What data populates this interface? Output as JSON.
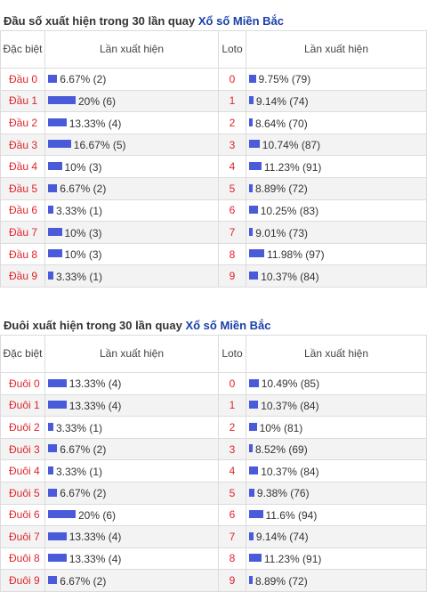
{
  "sections": [
    {
      "title_prefix": "Đầu số xuất hiện trong 30 lần quay",
      "title_link": "Xổ số Miền Bắc",
      "headers": {
        "col1": "Đặc biệt",
        "col2": "Lần xuất hiện",
        "col3": "Loto",
        "col4": "Lần xuất hiện"
      },
      "rows": [
        {
          "label": "Đầu 0",
          "special_pct": 6.67,
          "special_text": "6.67% (2)",
          "loto": "0",
          "loto_pct": 9.75,
          "loto_text": "9.75% (79)"
        },
        {
          "label": "Đầu 1",
          "special_pct": 20,
          "special_text": "20% (6)",
          "loto": "1",
          "loto_pct": 9.14,
          "loto_text": "9.14% (74)"
        },
        {
          "label": "Đầu 2",
          "special_pct": 13.33,
          "special_text": "13.33% (4)",
          "loto": "2",
          "loto_pct": 8.64,
          "loto_text": "8.64% (70)"
        },
        {
          "label": "Đầu 3",
          "special_pct": 16.67,
          "special_text": "16.67% (5)",
          "loto": "3",
          "loto_pct": 10.74,
          "loto_text": "10.74% (87)"
        },
        {
          "label": "Đầu 4",
          "special_pct": 10,
          "special_text": "10% (3)",
          "loto": "4",
          "loto_pct": 11.23,
          "loto_text": "11.23% (91)"
        },
        {
          "label": "Đầu 5",
          "special_pct": 6.67,
          "special_text": "6.67% (2)",
          "loto": "5",
          "loto_pct": 8.89,
          "loto_text": "8.89% (72)"
        },
        {
          "label": "Đầu 6",
          "special_pct": 3.33,
          "special_text": "3.33% (1)",
          "loto": "6",
          "loto_pct": 10.25,
          "loto_text": "10.25% (83)"
        },
        {
          "label": "Đầu 7",
          "special_pct": 10,
          "special_text": "10% (3)",
          "loto": "7",
          "loto_pct": 9.01,
          "loto_text": "9.01% (73)"
        },
        {
          "label": "Đầu 8",
          "special_pct": 10,
          "special_text": "10% (3)",
          "loto": "8",
          "loto_pct": 11.98,
          "loto_text": "11.98% (97)"
        },
        {
          "label": "Đầu 9",
          "special_pct": 3.33,
          "special_text": "3.33% (1)",
          "loto": "9",
          "loto_pct": 10.37,
          "loto_text": "10.37% (84)"
        }
      ]
    },
    {
      "title_prefix": "Đuôi xuất hiện trong 30 lần quay",
      "title_link": "Xổ số Miền Bắc",
      "headers": {
        "col1": "Đặc biệt",
        "col2": "Lần xuất hiện",
        "col3": "Loto",
        "col4": "Lần xuất hiện"
      },
      "rows": [
        {
          "label": "Đuôi 0",
          "special_pct": 13.33,
          "special_text": "13.33% (4)",
          "loto": "0",
          "loto_pct": 10.49,
          "loto_text": "10.49% (85)"
        },
        {
          "label": "Đuôi 1",
          "special_pct": 13.33,
          "special_text": "13.33% (4)",
          "loto": "1",
          "loto_pct": 10.37,
          "loto_text": "10.37% (84)"
        },
        {
          "label": "Đuôi 2",
          "special_pct": 3.33,
          "special_text": "3.33% (1)",
          "loto": "2",
          "loto_pct": 10,
          "loto_text": "10% (81)"
        },
        {
          "label": "Đuôi 3",
          "special_pct": 6.67,
          "special_text": "6.67% (2)",
          "loto": "3",
          "loto_pct": 8.52,
          "loto_text": "8.52% (69)"
        },
        {
          "label": "Đuôi 4",
          "special_pct": 3.33,
          "special_text": "3.33% (1)",
          "loto": "4",
          "loto_pct": 10.37,
          "loto_text": "10.37% (84)"
        },
        {
          "label": "Đuôi 5",
          "special_pct": 6.67,
          "special_text": "6.67% (2)",
          "loto": "5",
          "loto_pct": 9.38,
          "loto_text": "9.38% (76)"
        },
        {
          "label": "Đuôi 6",
          "special_pct": 20,
          "special_text": "20% (6)",
          "loto": "6",
          "loto_pct": 11.6,
          "loto_text": "11.6% (94)"
        },
        {
          "label": "Đuôi 7",
          "special_pct": 13.33,
          "special_text": "13.33% (4)",
          "loto": "7",
          "loto_pct": 9.14,
          "loto_text": "9.14% (74)"
        },
        {
          "label": "Đuôi 8",
          "special_pct": 13.33,
          "special_text": "13.33% (4)",
          "loto": "8",
          "loto_pct": 11.23,
          "loto_text": "11.23% (91)"
        },
        {
          "label": "Đuôi 9",
          "special_pct": 6.67,
          "special_text": "6.67% (2)",
          "loto": "9",
          "loto_pct": 8.89,
          "loto_text": "8.89% (72)"
        }
      ]
    }
  ],
  "colors": {
    "bar": "#4a5bd9",
    "label_red": "#e0242b",
    "link_blue": "#1a3fa8"
  }
}
